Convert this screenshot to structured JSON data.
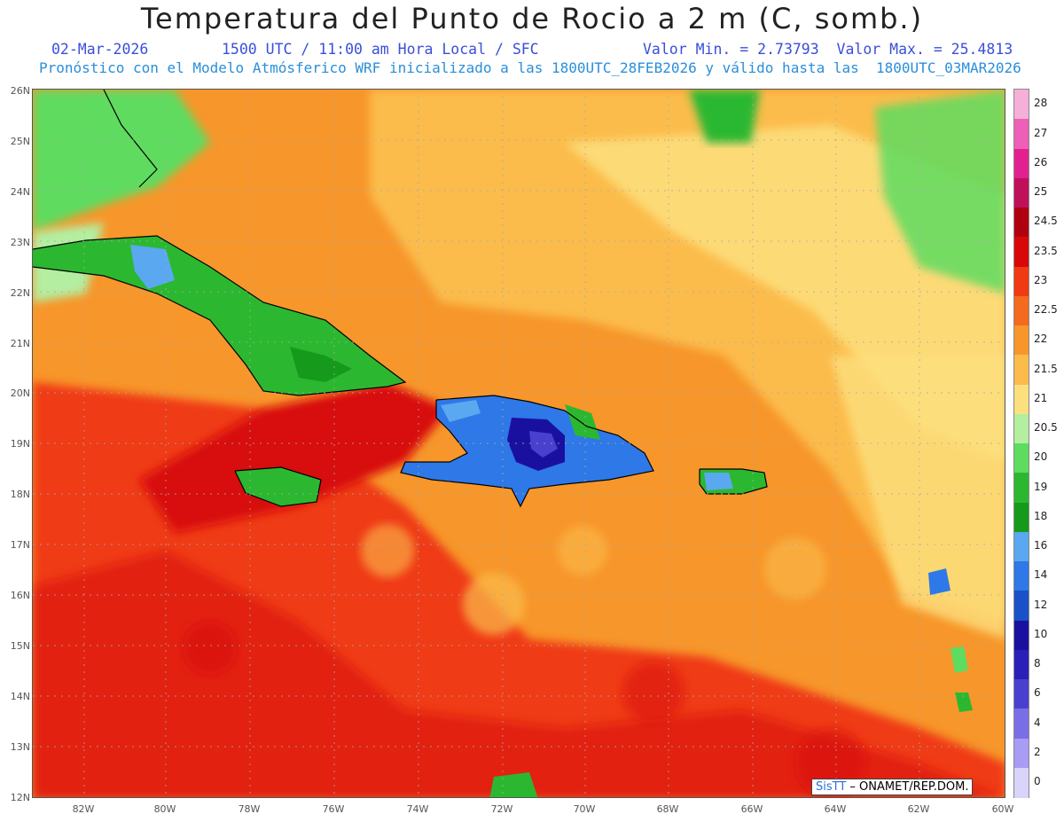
{
  "title": "Temperatura del Punto de Rocio a 2 m (C, somb.)",
  "date": "02-Mar-2026",
  "time": "1500 UTC / 11:00 am Hora Local / SFC",
  "range": "Valor Min. = 2.73793  Valor Max. = 25.4813",
  "model_line": "Pronóstico con el Modelo Atmósferico WRF inicializado a las 1800UTC_28FEB2026 y válido hasta las  1800UTC_03MAR2026",
  "credit_logo": "SisTT",
  "credit_text": " – ONAMET/REP.DOM.",
  "lat_labels": [
    "26N",
    "25N",
    "24N",
    "23N",
    "22N",
    "21N",
    "20N",
    "19N",
    "18N",
    "17N",
    "16N",
    "15N",
    "14N",
    "13N",
    "12N"
  ],
  "lon_labels": [
    "82W",
    "80W",
    "78W",
    "76W",
    "74W",
    "72W",
    "70W",
    "68W",
    "66W",
    "64W",
    "62W",
    "60W"
  ],
  "colorbar": [
    {
      "label": "28",
      "color": "#f4b0d8"
    },
    {
      "label": "27",
      "color": "#ee5fb8"
    },
    {
      "label": "26",
      "color": "#e22090"
    },
    {
      "label": "25",
      "color": "#c0105a"
    },
    {
      "label": "24.5",
      "color": "#b00010"
    },
    {
      "label": "23.5",
      "color": "#d80808"
    },
    {
      "label": "23",
      "color": "#ef3a12"
    },
    {
      "label": "22.5",
      "color": "#f46a1e"
    },
    {
      "label": "22",
      "color": "#f7962a"
    },
    {
      "label": "21.5",
      "color": "#fbbc4c"
    },
    {
      "label": "21",
      "color": "#fde07e"
    },
    {
      "label": "20.5",
      "color": "#b4eea0"
    },
    {
      "label": "20",
      "color": "#5edc60"
    },
    {
      "label": "19",
      "color": "#2bb830"
    },
    {
      "label": "18",
      "color": "#169a1c"
    },
    {
      "label": "16",
      "color": "#5aa8f0"
    },
    {
      "label": "14",
      "color": "#2e78e8"
    },
    {
      "label": "12",
      "color": "#1a50c8"
    },
    {
      "label": "10",
      "color": "#1a10a0"
    },
    {
      "label": "8",
      "color": "#2a20b8"
    },
    {
      "label": "6",
      "color": "#4a40d0"
    },
    {
      "label": "4",
      "color": "#7a6ee6"
    },
    {
      "label": "2",
      "color": "#a89cf4"
    },
    {
      "label": "0",
      "color": "#d8d4fa"
    }
  ]
}
